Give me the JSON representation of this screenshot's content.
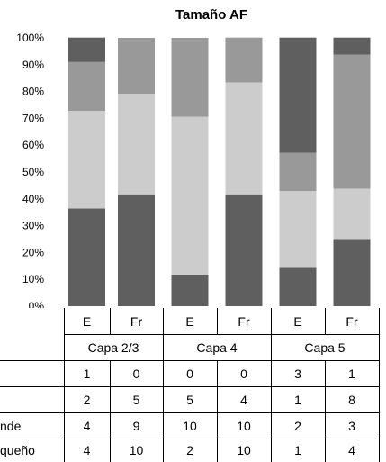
{
  "chart_data": {
    "type": "bar",
    "stacked": true,
    "title": "Tamaño AF",
    "categories": [
      "E",
      "Fr",
      "E",
      "Fr",
      "E",
      "Fr"
    ],
    "groups": [
      "Capa 2/3",
      "Capa 4",
      "Capa 5"
    ],
    "y_ticks": [
      "0%",
      "10%",
      "20%",
      "30%",
      "40%",
      "50%",
      "60%",
      "70%",
      "80%",
      "90%",
      "100%"
    ],
    "ylim": [
      0,
      100
    ],
    "grid": false,
    "series": [
      {
        "name": "Pequeño",
        "color": "#5f5f5f",
        "values": [
          36.4,
          41.7,
          11.8,
          41.7,
          14.3,
          25.0
        ]
      },
      {
        "name": "Grande",
        "color": "#cccccc",
        "values": [
          36.4,
          37.5,
          58.8,
          41.7,
          28.6,
          18.8
        ]
      },
      {
        "name": "",
        "color": "#999999",
        "values": [
          18.2,
          20.8,
          29.4,
          16.7,
          14.3,
          50.0
        ]
      },
      {
        "name": "",
        "color": "#5f5f5f",
        "values": [
          9.1,
          0.0,
          0.0,
          0.0,
          42.9,
          6.3
        ]
      }
    ]
  },
  "table": {
    "row_labels": [
      "",
      "",
      "nde",
      "queño"
    ],
    "rows": [
      [
        "1",
        "0",
        "0",
        "0",
        "3",
        "1"
      ],
      [
        "2",
        "5",
        "5",
        "4",
        "1",
        "8"
      ],
      [
        "4",
        "9",
        "10",
        "10",
        "2",
        "3"
      ],
      [
        "4",
        "10",
        "2",
        "10",
        "1",
        "4"
      ]
    ]
  }
}
